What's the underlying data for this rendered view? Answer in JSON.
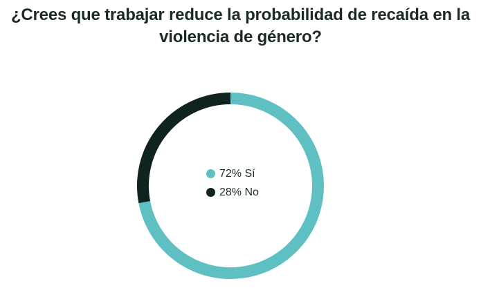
{
  "title_line1": "¿Crees que trabajar reduce la probabilidad de recaída en la",
  "title_line2": "violencia de género?",
  "chart_data": {
    "type": "pie",
    "variant": "donut",
    "title": "¿Crees que trabajar reduce la probabilidad de recaída en la violencia de género?",
    "categories": [
      "Sí",
      "No"
    ],
    "values": [
      72,
      28
    ],
    "unit": "%",
    "colors": [
      "#5ec0c3",
      "#0f2420"
    ],
    "legend": [
      {
        "label": "72% Sí",
        "color": "#5ec0c3"
      },
      {
        "label": "28% No",
        "color": "#0f2420"
      }
    ],
    "legend_position": "center"
  }
}
